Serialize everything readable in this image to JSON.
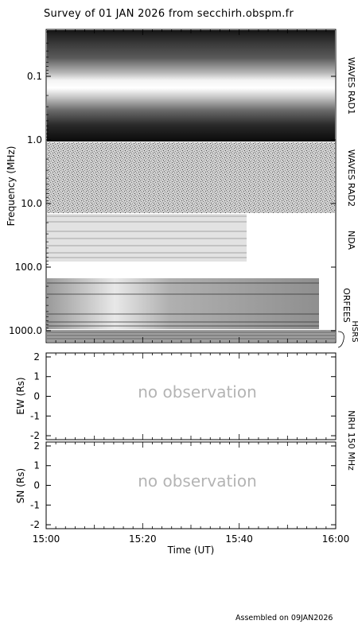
{
  "title": "Survey of 01 JAN 2026 from secchirh.obspm.fr",
  "footer": "Assembled on 09JAN2026",
  "chart_data": [
    {
      "type": "heatmap",
      "ylabel": "Frequency (MHz)",
      "y_scale": "log",
      "yticks": [
        "0.1",
        "1.0",
        "10.0",
        "100.0",
        "1000.0"
      ],
      "ylim_mhz": [
        0.02,
        1400
      ],
      "instruments": [
        {
          "label": "WAVES RAD1",
          "freq_range_mhz": [
            0.02,
            1.0
          ],
          "time_range": [
            "15:00",
            "16:00"
          ]
        },
        {
          "label": "WAVES RAD2",
          "freq_range_mhz": [
            1.0,
            14.0
          ],
          "time_range": [
            "15:00",
            "16:00"
          ]
        },
        {
          "label": "NDA",
          "freq_range_mhz": [
            14.0,
            80.0
          ],
          "time_range": [
            "15:00",
            "15:42"
          ]
        },
        {
          "label": "ORFEES",
          "freq_range_mhz": [
            140.0,
            1000.0
          ],
          "time_range": [
            "15:00",
            "15:58"
          ]
        },
        {
          "label": "HSRS",
          "freq_range_mhz": [
            1000.0,
            1400.0
          ],
          "time_range": [
            "15:00",
            "16:00"
          ]
        }
      ]
    },
    {
      "type": "scatter",
      "ylabel": "EW (Rs)",
      "ylim": [
        -2.2,
        2.2
      ],
      "yticks": [
        "2",
        "1",
        "0",
        "-1",
        "-2"
      ],
      "message": "no observation"
    },
    {
      "type": "scatter",
      "ylabel": "SN (Rs)",
      "ylim": [
        -2.2,
        2.2
      ],
      "yticks": [
        "2",
        "1",
        "0",
        "-1",
        "-2"
      ],
      "message": "no observation"
    }
  ],
  "nrh_label": "NRH 150 MHz",
  "xaxis": {
    "label": "Time (UT)",
    "ticks": [
      "15:00",
      "15:20",
      "15:40",
      "16:00"
    ],
    "range_minutes": [
      0,
      60
    ]
  }
}
